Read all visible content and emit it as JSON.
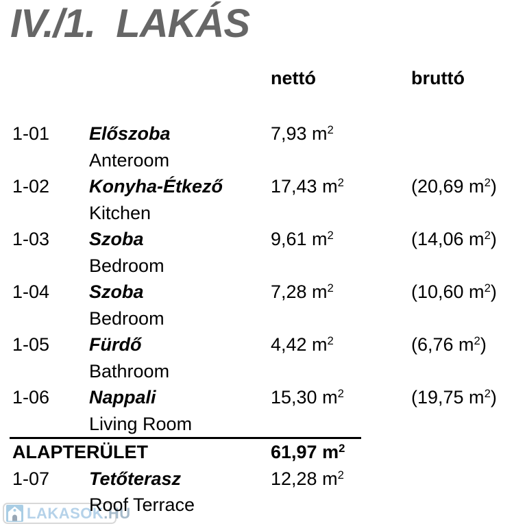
{
  "title": "IV./1.  LAKÁS",
  "table": {
    "headers": {
      "netto": "nettó",
      "brutto": "bruttó"
    },
    "rows": [
      {
        "code": "1-01",
        "name_hu": "Előszoba",
        "name_en": "Anteroom",
        "netto": "7,93 m²",
        "brutto": ""
      },
      {
        "code": "1-02",
        "name_hu": "Konyha-Étkező",
        "name_en": "Kitchen",
        "netto": "17,43 m²",
        "brutto": "(20,69 m²)"
      },
      {
        "code": "1-03",
        "name_hu": "Szoba",
        "name_en": "Bedroom",
        "netto": "9,61 m²",
        "brutto": "(14,06 m²)"
      },
      {
        "code": "1-04",
        "name_hu": "Szoba",
        "name_en": "Bedroom",
        "netto": "7,28 m²",
        "brutto": "(10,60 m²)"
      },
      {
        "code": "1-05",
        "name_hu": "Fürdő",
        "name_en": "Bathroom",
        "netto": "4,42 m²",
        "brutto": "(6,76 m²)"
      },
      {
        "code": "1-06",
        "name_hu": "Nappali",
        "name_en": "Living Room",
        "netto": "15,30 m²",
        "brutto": "(19,75 m²)"
      }
    ],
    "summary": {
      "label": "ALAPTERÜLET",
      "netto": "61,97 m²"
    },
    "extra_rows": [
      {
        "code": "1-07",
        "name_hu": "Tetőterasz",
        "name_en": "Roof Terrace",
        "netto": "12,28 m²",
        "brutto": ""
      }
    ]
  },
  "watermark": {
    "brand": "LAKASOK",
    "tld": ".HU",
    "icon": "house-icon"
  },
  "colors": {
    "title_gray": "#666666",
    "text_black": "#000000",
    "watermark_blue": "#b5d2e9",
    "watermark_tld_blue_gray": "#a7bbcb",
    "watermark_border": "#d8d8d8",
    "watermark_icon_blue": "#a9cde4"
  }
}
